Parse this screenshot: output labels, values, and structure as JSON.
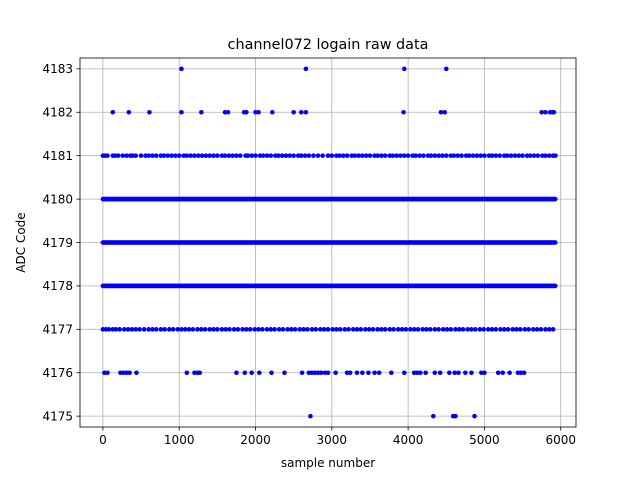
{
  "chart_data": {
    "type": "scatter",
    "title": "channel072 logain raw data",
    "xlabel": "sample number",
    "ylabel": "ADC Code",
    "xlim": [
      -300,
      6200
    ],
    "ylim": [
      4174.75,
      4183.25
    ],
    "xticks": [
      0,
      1000,
      2000,
      3000,
      4000,
      5000,
      6000
    ],
    "yticks": [
      4175,
      4176,
      4177,
      4178,
      4179,
      4180,
      4181,
      4182,
      4183
    ],
    "grid": true,
    "marker_color": "#0000ff",
    "dense_levels": [
      {
        "y": 4178,
        "x_range": [
          0,
          5930
        ]
      },
      {
        "y": 4179,
        "x_range": [
          0,
          5930
        ]
      },
      {
        "y": 4180,
        "x_range": [
          0,
          5930
        ]
      }
    ],
    "series": [
      {
        "x": [
          0,
          30,
          60,
          130,
          160,
          200,
          260,
          310,
          360,
          390,
          430,
          500,
          560,
          600,
          650,
          700,
          760,
          800,
          850,
          900,
          950,
          1000,
          1060,
          1100,
          1150,
          1200,
          1250,
          1300,
          1350,
          1400,
          1450,
          1500,
          1560,
          1600,
          1650,
          1700,
          1750,
          1800,
          1870,
          1900,
          1950,
          2000,
          2060,
          2100,
          2150,
          2200,
          2260,
          2300,
          2350,
          2400,
          2450,
          2500,
          2560,
          2600,
          2650,
          2700,
          2760,
          2820,
          2880,
          2950,
          3000,
          3060,
          3100,
          3150,
          3200,
          3260,
          3300,
          3350,
          3400,
          3450,
          3500,
          3560,
          3600,
          3650,
          3700,
          3760,
          3800,
          3850,
          3900,
          3950,
          4000,
          4060,
          4100,
          4150,
          4200,
          4260,
          4300,
          4350,
          4400,
          4450,
          4500,
          4560,
          4600,
          4650,
          4700,
          4760,
          4800,
          4850,
          4900,
          4950,
          5000,
          5060,
          5100,
          5150,
          5200,
          5260,
          5300,
          5350,
          5400,
          5450,
          5500,
          5560,
          5600,
          5650,
          5700,
          5760,
          5800,
          5850,
          5900,
          5930,
          0,
          40,
          80,
          130,
          170,
          220,
          280,
          330,
          380,
          430,
          480,
          540,
          600,
          650,
          700,
          760,
          810,
          870,
          920,
          980,
          1030,
          1080,
          1130,
          1180,
          1240,
          1290,
          1340,
          1400,
          1450,
          1500,
          1560,
          1610,
          1660,
          1720,
          1770,
          1830,
          1880,
          1930,
          1990,
          2040,
          2090,
          2150,
          2200,
          2250,
          2310,
          2360,
          2420,
          2470,
          2520,
          2580,
          2630,
          2680,
          2740,
          2790,
          2850,
          2900,
          2950,
          3010,
          3060,
          3110,
          3170,
          3220,
          3280,
          3330,
          3380,
          3440,
          3490,
          3540,
          3600,
          3650,
          3700,
          3760,
          3810,
          3870,
          3920,
          3970,
          4030,
          4080,
          4130,
          4190,
          4240,
          4290,
          4350,
          4400,
          4460,
          4510,
          4560,
          4620,
          4670,
          4720,
          4780,
          4830,
          4880,
          4940,
          4990,
          5050,
          5100,
          5150,
          5210,
          5260,
          5310,
          5370,
          5420,
          5470,
          5530,
          5580,
          5640,
          5690,
          5740,
          5800,
          5850,
          5900,
          130,
          340,
          610,
          1030,
          1290,
          1600,
          1640,
          1850,
          1880,
          2000,
          2040,
          2220,
          2500,
          2600,
          2660,
          3940,
          4430,
          4480,
          5750,
          5800,
          5860,
          5890,
          5910,
          1030,
          2660,
          3950,
          4500,
          20,
          60,
          230,
          270,
          310,
          350,
          440,
          1100,
          1200,
          1240,
          1270,
          1750,
          1860,
          1950,
          2050,
          2210,
          2380,
          2610,
          2700,
          2740,
          2780,
          2820,
          2860,
          2910,
          2950,
          3050,
          3200,
          3240,
          3330,
          3400,
          3480,
          3560,
          3620,
          3780,
          3950,
          4080,
          4120,
          4160,
          4230,
          4350,
          4420,
          4540,
          4610,
          4660,
          4750,
          4830,
          4960,
          5000,
          5180,
          5240,
          5330,
          5440,
          5480,
          5520,
          2720,
          4330,
          4590,
          4620,
          4870
        ],
        "y": [
          4181,
          4181,
          4181,
          4181,
          4181,
          4181,
          4181,
          4181,
          4181,
          4181,
          4181,
          4181,
          4181,
          4181,
          4181,
          4181,
          4181,
          4181,
          4181,
          4181,
          4181,
          4181,
          4181,
          4181,
          4181,
          4181,
          4181,
          4181,
          4181,
          4181,
          4181,
          4181,
          4181,
          4181,
          4181,
          4181,
          4181,
          4181,
          4181,
          4181,
          4181,
          4181,
          4181,
          4181,
          4181,
          4181,
          4181,
          4181,
          4181,
          4181,
          4181,
          4181,
          4181,
          4181,
          4181,
          4181,
          4181,
          4181,
          4181,
          4181,
          4181,
          4181,
          4181,
          4181,
          4181,
          4181,
          4181,
          4181,
          4181,
          4181,
          4181,
          4181,
          4181,
          4181,
          4181,
          4181,
          4181,
          4181,
          4181,
          4181,
          4181,
          4181,
          4181,
          4181,
          4181,
          4181,
          4181,
          4181,
          4181,
          4181,
          4181,
          4181,
          4181,
          4181,
          4181,
          4181,
          4181,
          4181,
          4181,
          4181,
          4181,
          4181,
          4181,
          4181,
          4181,
          4181,
          4181,
          4181,
          4181,
          4181,
          4181,
          4181,
          4181,
          4181,
          4181,
          4181,
          4181,
          4181,
          4181,
          4181,
          4177,
          4177,
          4177,
          4177,
          4177,
          4177,
          4177,
          4177,
          4177,
          4177,
          4177,
          4177,
          4177,
          4177,
          4177,
          4177,
          4177,
          4177,
          4177,
          4177,
          4177,
          4177,
          4177,
          4177,
          4177,
          4177,
          4177,
          4177,
          4177,
          4177,
          4177,
          4177,
          4177,
          4177,
          4177,
          4177,
          4177,
          4177,
          4177,
          4177,
          4177,
          4177,
          4177,
          4177,
          4177,
          4177,
          4177,
          4177,
          4177,
          4177,
          4177,
          4177,
          4177,
          4177,
          4177,
          4177,
          4177,
          4177,
          4177,
          4177,
          4177,
          4177,
          4177,
          4177,
          4177,
          4177,
          4177,
          4177,
          4177,
          4177,
          4177,
          4177,
          4177,
          4177,
          4177,
          4177,
          4177,
          4177,
          4177,
          4177,
          4177,
          4177,
          4177,
          4177,
          4177,
          4177,
          4177,
          4177,
          4177,
          4177,
          4177,
          4177,
          4177,
          4177,
          4177,
          4177,
          4177,
          4177,
          4177,
          4177,
          4177,
          4177,
          4177,
          4177,
          4177,
          4177,
          4177,
          4177,
          4177,
          4177,
          4177,
          4177,
          4182,
          4182,
          4182,
          4182,
          4182,
          4182,
          4182,
          4182,
          4182,
          4182,
          4182,
          4182,
          4182,
          4182,
          4182,
          4182,
          4182,
          4182,
          4182,
          4182,
          4182,
          4182,
          4182,
          4183,
          4183,
          4183,
          4183,
          4176,
          4176,
          4176,
          4176,
          4176,
          4176,
          4176,
          4176,
          4176,
          4176,
          4176,
          4176,
          4176,
          4176,
          4176,
          4176,
          4176,
          4176,
          4176,
          4176,
          4176,
          4176,
          4176,
          4176,
          4176,
          4176,
          4176,
          4176,
          4176,
          4176,
          4176,
          4176,
          4176,
          4176,
          4176,
          4176,
          4176,
          4176,
          4176,
          4176,
          4176,
          4176,
          4176,
          4176,
          4176,
          4176,
          4176,
          4176,
          4176,
          4176,
          4176,
          4176,
          4176,
          4176,
          4175,
          4175,
          4175,
          4175,
          4175
        ]
      }
    ]
  }
}
